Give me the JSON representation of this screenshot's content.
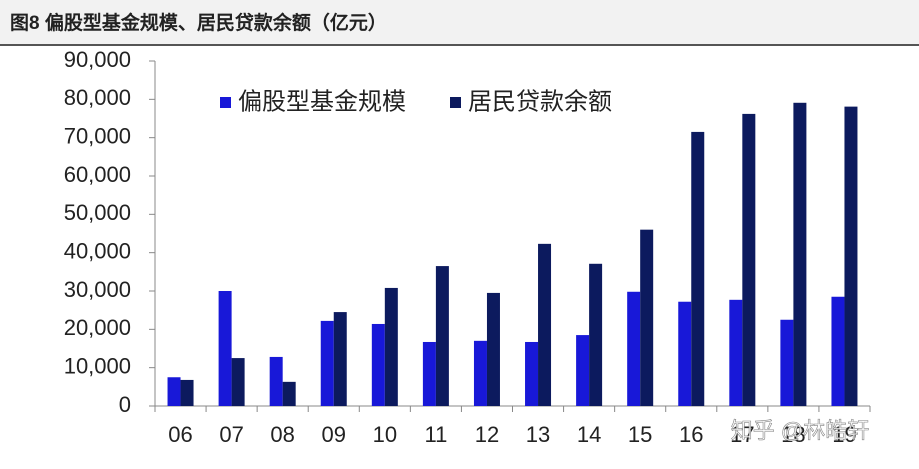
{
  "chart_data": {
    "type": "bar",
    "title": "图8  偏股型基金规模、居民贷款余额（亿元）",
    "categories": [
      "06",
      "07",
      "08",
      "09",
      "10",
      "11",
      "12",
      "13",
      "14",
      "15",
      "16",
      "17",
      "18",
      "19"
    ],
    "series": [
      {
        "name": "偏股型基金规模",
        "color": "#1818d8",
        "values": [
          7500,
          30000,
          12800,
          22200,
          21400,
          16700,
          17000,
          16700,
          18500,
          29800,
          27200,
          27700,
          22500,
          28500
        ]
      },
      {
        "name": "居民贷款余额",
        "color": "#0c1a5e",
        "values": [
          6800,
          12500,
          6300,
          24500,
          30800,
          36500,
          29500,
          42300,
          37100,
          46000,
          71500,
          76200,
          79100,
          78100
        ]
      }
    ],
    "ylim": [
      0,
      90000
    ],
    "yticks": [
      0,
      {
        "value": 10000,
        "label": "10,000"
      },
      {
        "value": 20000,
        "label": "20,000"
      },
      {
        "value": 30000,
        "label": "30,000"
      },
      {
        "value": 40000,
        "label": "40,000"
      },
      {
        "value": 50000,
        "label": "50,000"
      },
      {
        "value": 60000,
        "label": "60,000"
      },
      {
        "value": 70000,
        "label": "70,000"
      },
      {
        "value": 80000,
        "label": "80,000"
      },
      {
        "value": 90000,
        "label": "90,000"
      }
    ],
    "grid": false,
    "legend": "top-left",
    "watermark": "知乎 @林皓轩"
  }
}
